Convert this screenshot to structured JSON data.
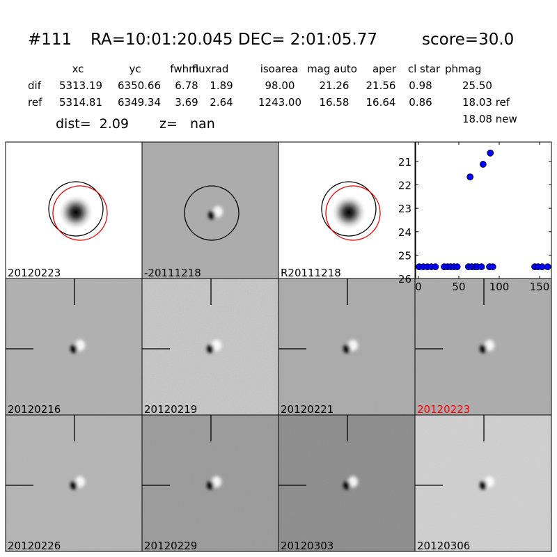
{
  "header": {
    "id": "#111",
    "coords": "RA=10:01:20.045 DEC= 2:01:05.77",
    "score": "score=30.0"
  },
  "table": {
    "columns": [
      "xc",
      "yc",
      "fwhm",
      "fluxrad",
      "isoarea",
      "mag auto",
      "aper",
      "cl star",
      "phmag"
    ],
    "rows": [
      [
        "dif",
        "5313.19",
        "6350.66",
        "6.78",
        "1.89",
        "98.00",
        "21.26",
        "21.56",
        "0.98",
        "25.50"
      ],
      [
        "ref",
        "5314.81",
        "6349.34",
        "3.69",
        "2.64",
        "1243.00",
        "16.58",
        "16.64",
        "0.86",
        "18.03 ref"
      ]
    ],
    "extra": "18.08 new"
  },
  "dist": "dist=  2.09",
  "z": "z=   nan",
  "panels": [
    {
      "label": "20120223"
    },
    {
      "label": "-20111218"
    },
    {
      "label": "R20111218"
    },
    {
      "label": "20120216"
    },
    {
      "label": "20120219"
    },
    {
      "label": "20120221"
    },
    {
      "label": "20120223"
    },
    {
      "label": "20120226"
    },
    {
      "label": "20120229"
    },
    {
      "label": "20120303"
    },
    {
      "label": "20120306"
    }
  ],
  "chart_data": {
    "type": "scatter",
    "x": [
      1,
      6,
      11,
      16,
      21,
      32,
      36,
      40,
      44,
      48,
      62,
      64,
      66,
      70,
      73,
      78,
      80,
      88,
      89,
      92,
      144,
      148,
      153,
      160
    ],
    "y": [
      25.5,
      25.5,
      25.5,
      25.5,
      25.5,
      25.5,
      25.5,
      25.5,
      25.5,
      25.5,
      25.5,
      21.66,
      25.5,
      25.5,
      25.5,
      25.5,
      21.12,
      25.5,
      20.64,
      25.5,
      25.5,
      25.5,
      25.5,
      25.5
    ],
    "color": "#0000ff",
    "xlim": [
      -3.4,
      164.6
    ],
    "ylim": [
      26,
      20.17
    ],
    "xticks": [
      0,
      50,
      100,
      150
    ],
    "yticks": [
      21,
      22,
      23,
      24,
      25,
      26
    ]
  }
}
